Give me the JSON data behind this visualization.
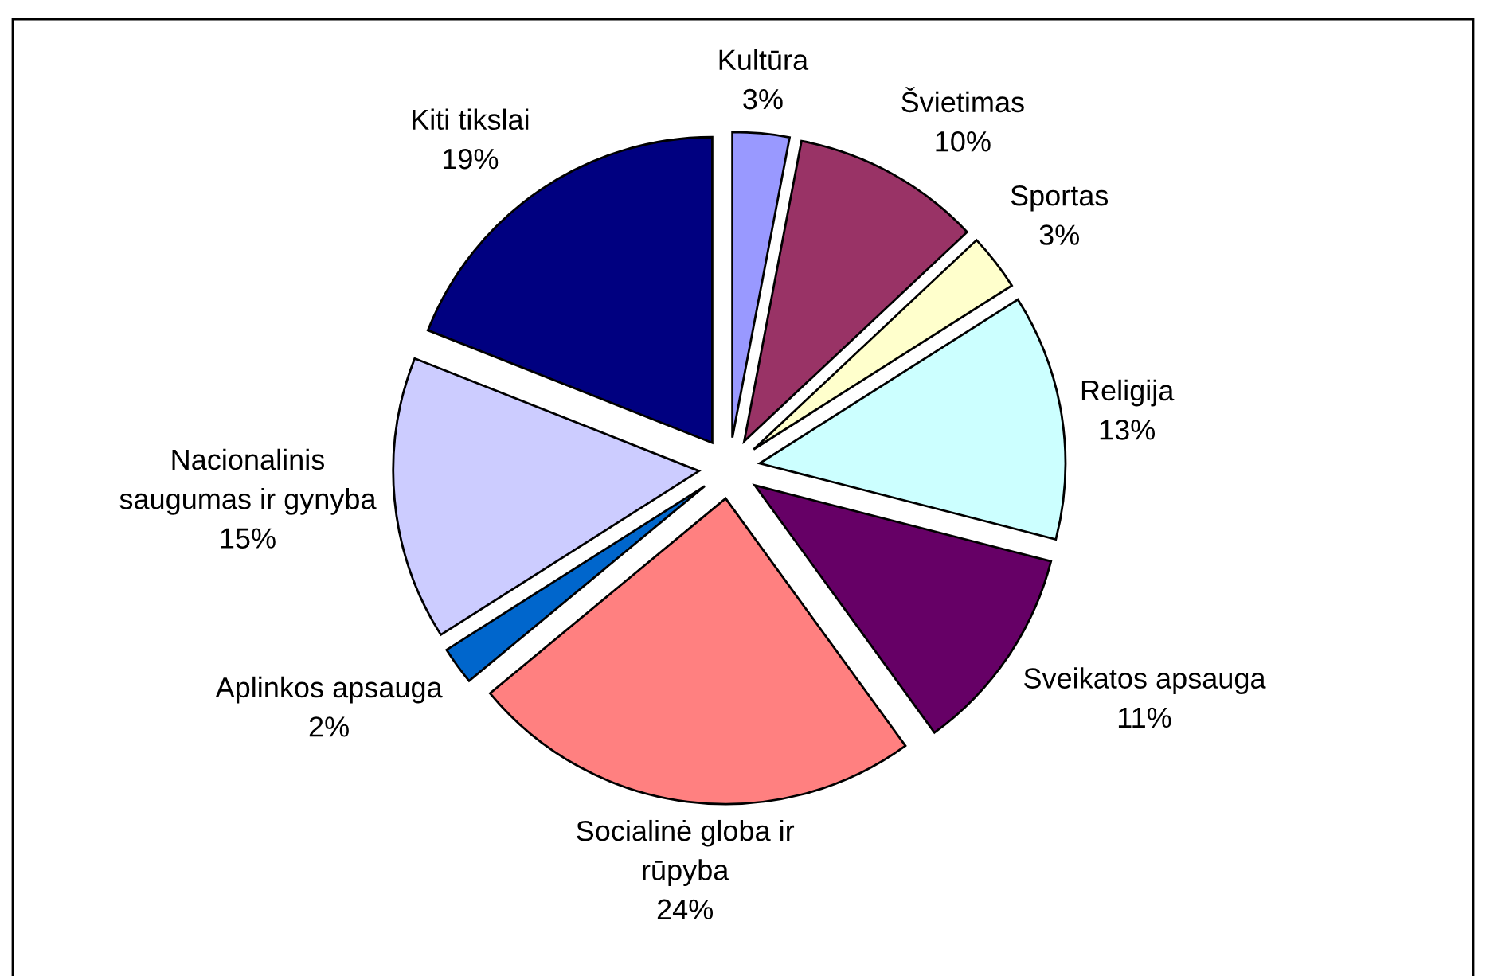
{
  "chart_data": {
    "type": "pie",
    "categories": [
      "Kultūra",
      "Švietimas",
      "Sportas",
      "Religija",
      "Sveikatos apsauga",
      "Socialinė globa ir\nrūpyba",
      "Aplinkos apsauga",
      "Nacionalinis\nsaugumas ir gynyba",
      "Kiti tikslai"
    ],
    "values": [
      3,
      10,
      3,
      13,
      11,
      24,
      2,
      15,
      19
    ],
    "colors": [
      "#9999ff",
      "#993366",
      "#ffffcc",
      "#ccffff",
      "#660066",
      "#ff8080",
      "#0066cc",
      "#ccccff",
      "#000080"
    ],
    "value_labels": [
      "3%",
      "10%",
      "3%",
      "13%",
      "11%",
      "24%",
      "2%",
      "15%",
      "19%"
    ]
  }
}
